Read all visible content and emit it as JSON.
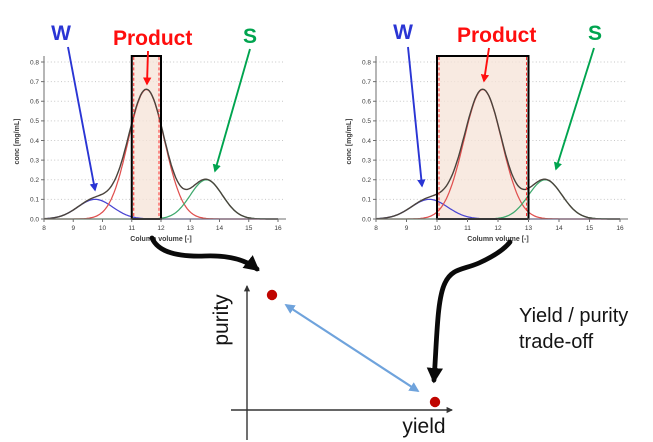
{
  "colors": {
    "label_w": "#2a35d4",
    "label_product": "#ff0e0e",
    "label_s": "#00a44f",
    "curve_w": "#4844d2",
    "curve_product": "#e0504f",
    "curve_s": "#3fa96d",
    "curve_total": "#4a433c",
    "cut_fill": "#f6e3d7",
    "cut_border": "#000000",
    "cut_dashed": "#ff2f2f",
    "grid": "#c7c7c7",
    "axis": "#6e6e6e",
    "tick_text": "#3c3c3c",
    "dot": "#c00500",
    "double_arrow": "#6fa3dc",
    "thick_arrow": "#0a0a0a",
    "sketch_axis": "#333333"
  },
  "chart_data": [
    {
      "type": "line",
      "name": "chromatogram-narrow-cut",
      "peak_labels": {
        "w": "W",
        "product": "Product",
        "s": "S"
      },
      "xlabel": "Column volume [-]",
      "ylabel": "conc [mg/mL]",
      "x_ticks": [
        "8",
        "9",
        "10",
        "11",
        "12",
        "13",
        "14",
        "15",
        "16"
      ],
      "y_ticks": [
        "0.0",
        "0.1",
        "0.2",
        "0.3",
        "0.4",
        "0.5",
        "0.6",
        "0.7",
        "0.8"
      ],
      "xlim": [
        8,
        16
      ],
      "ylim": [
        0,
        0.8
      ],
      "grid": "dotted horizontal",
      "cut_window": [
        11,
        12
      ],
      "series": [
        {
          "name": "W",
          "shape": "gaussian",
          "center": 9.75,
          "sigma": 0.6,
          "amplitude": 0.1,
          "color_key": "curve_w"
        },
        {
          "name": "Product",
          "shape": "gaussian",
          "center": 11.5,
          "sigma": 0.62,
          "amplitude": 0.66,
          "color_key": "curve_product"
        },
        {
          "name": "S",
          "shape": "gaussian",
          "center": 13.55,
          "sigma": 0.55,
          "amplitude": 0.2,
          "color_key": "curve_s"
        },
        {
          "name": "Total",
          "shape": "sum",
          "color_key": "curve_total"
        }
      ]
    },
    {
      "type": "line",
      "name": "chromatogram-wide-cut",
      "peak_labels": {
        "w": "W",
        "product": "Product",
        "s": "S"
      },
      "xlabel": "Column volume [-]",
      "ylabel": "conc [mg/mL]",
      "x_ticks": [
        "8",
        "9",
        "10",
        "11",
        "12",
        "13",
        "14",
        "15",
        "16"
      ],
      "y_ticks": [
        "0.0",
        "0.1",
        "0.2",
        "0.3",
        "0.4",
        "0.5",
        "0.6",
        "0.7",
        "0.8"
      ],
      "xlim": [
        8,
        16
      ],
      "ylim": [
        0,
        0.8
      ],
      "grid": "dotted horizontal",
      "cut_window": [
        10,
        13
      ],
      "series": [
        {
          "name": "W",
          "shape": "gaussian",
          "center": 9.75,
          "sigma": 0.6,
          "amplitude": 0.1,
          "color_key": "curve_w"
        },
        {
          "name": "Product",
          "shape": "gaussian",
          "center": 11.5,
          "sigma": 0.62,
          "amplitude": 0.66,
          "color_key": "curve_product"
        },
        {
          "name": "S",
          "shape": "gaussian",
          "center": 13.55,
          "sigma": 0.55,
          "amplitude": 0.2,
          "color_key": "curve_s"
        },
        {
          "name": "Total",
          "shape": "sum",
          "color_key": "curve_total"
        }
      ]
    },
    {
      "type": "scatter",
      "name": "yield-purity-tradeoff-sketch",
      "xlabel": "yield",
      "ylabel": "purity",
      "caption_lines": [
        "Yield / purity",
        "trade-off"
      ],
      "points": [
        {
          "name": "narrow-cut-result",
          "x": 0.18,
          "y": 0.82
        },
        {
          "name": "wide-cut-result",
          "x": 0.9,
          "y": 0.07
        }
      ],
      "annotation": "double-headed arrow linking the two operating points"
    }
  ]
}
